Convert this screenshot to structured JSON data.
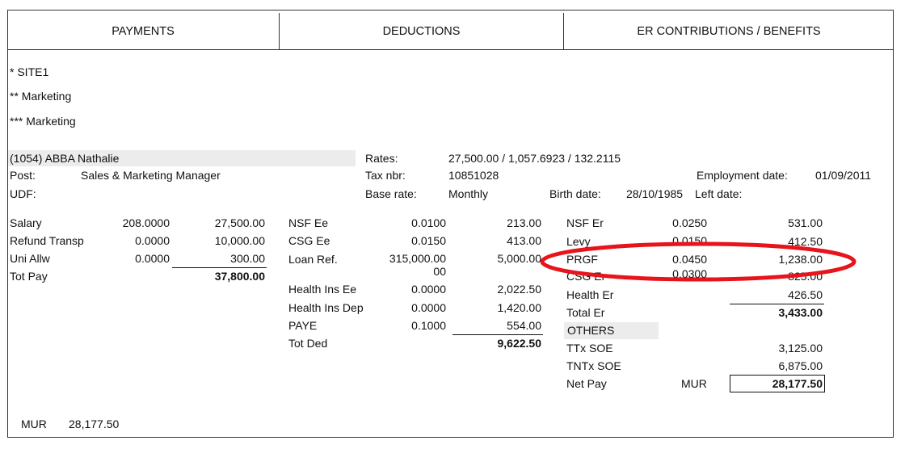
{
  "headers": {
    "payments": "PAYMENTS",
    "deductions": "DEDUCTIONS",
    "er": "ER CONTRIBUTIONS / BENEFITS"
  },
  "site": {
    "level1": "* SITE1",
    "level2": "** Marketing",
    "level3": "*** Marketing"
  },
  "employee": {
    "name": "(1054) ABBA Nathalie",
    "post_label": "Post:",
    "post_value": "Sales & Marketing Manager",
    "udf_label": "UDF:",
    "rates_label": "Rates:",
    "rates_value": "27,500.00 / 1,057.6923 / 132.2115",
    "tax_label": "Tax nbr:",
    "tax_value": "10851028",
    "base_label": "Base rate:",
    "base_value": "Monthly",
    "emp_date_label": "Employment date:",
    "emp_date_value": "01/09/2011",
    "birth_label": "Birth date:",
    "birth_value": "28/10/1985",
    "left_label": "Left date:"
  },
  "payments": [
    {
      "label": "Salary",
      "rate": "208.0000",
      "amount": "27,500.00"
    },
    {
      "label": "Refund Transp",
      "rate": "0.0000",
      "amount": "10,000.00"
    },
    {
      "label": "Uni Allw",
      "rate": "0.0000",
      "amount": "300.00"
    }
  ],
  "payments_total": {
    "label": "Tot Pay",
    "amount": "37,800.00"
  },
  "deductions": [
    {
      "label": "NSF Ee",
      "rate": "0.0100",
      "amount": "213.00"
    },
    {
      "label": "CSG Ee",
      "rate": "0.0150",
      "amount": "413.00"
    },
    {
      "label": "Loan Ref.",
      "rate": "315,000.00",
      "rate_cont": "00",
      "amount": "5,000.00"
    },
    {
      "label": "Health Ins Ee",
      "rate": "0.0000",
      "amount": "2,022.50"
    },
    {
      "label": "Health Ins Dep",
      "rate": "0.0000",
      "amount": "1,420.00"
    },
    {
      "label": "PAYE",
      "rate": "0.1000",
      "amount": "554.00"
    }
  ],
  "deductions_total": {
    "label": "Tot Ded",
    "amount": "9,622.50"
  },
  "er": [
    {
      "label": "NSF Er",
      "rate": "0.0250",
      "amount": "531.00"
    },
    {
      "label": "Levy",
      "rate": "0.0150",
      "amount": "412.50"
    },
    {
      "label": "PRGF",
      "rate": "0.0450",
      "amount": "1,238.00"
    },
    {
      "label": "CSG Er",
      "rate": "0.0300",
      "amount": "825.00"
    },
    {
      "label": "Health Er",
      "rate": "",
      "amount": "426.50"
    }
  ],
  "er_total": {
    "label": "Total Er",
    "amount": "3,433.00"
  },
  "others": {
    "title": "OTHERS",
    "items": [
      {
        "label": "TTx SOE",
        "amount": "3,125.00"
      },
      {
        "label": "TNTx SOE",
        "amount": "6,875.00"
      }
    ],
    "net_label": "Net Pay",
    "net_currency": "MUR",
    "net_amount": "28,177.50"
  },
  "footer": {
    "currency": "MUR",
    "amount": "28,177.50"
  },
  "colors": {
    "highlight": "#e8141c",
    "shade": "#ececec"
  }
}
